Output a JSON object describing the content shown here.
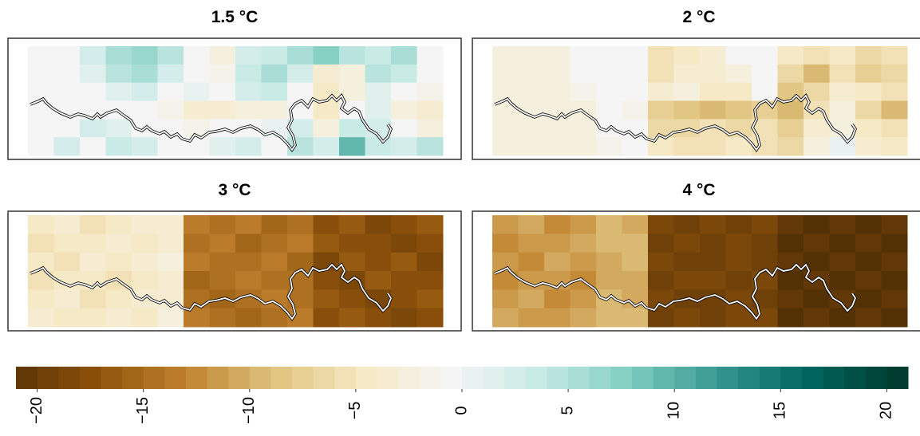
{
  "chart_data": {
    "type": "heatmap",
    "panels": [
      {
        "title": "1.5 °C",
        "values": [
          [
            0,
            0,
            3,
            6,
            7,
            5,
            0,
            -2,
            3,
            4,
            6,
            8,
            5,
            4,
            6,
            0
          ],
          [
            0,
            0,
            2,
            5,
            6,
            3,
            0,
            -1,
            4,
            6,
            3,
            -3,
            -2,
            5,
            4,
            0
          ],
          [
            0,
            0,
            0,
            2,
            3,
            0,
            1,
            0,
            3,
            4,
            0,
            -4,
            -2,
            2,
            0,
            -1
          ],
          [
            0,
            0,
            0,
            0,
            0,
            -1,
            -3,
            -3,
            -2,
            -2,
            0,
            -4,
            0,
            2,
            -2,
            -3
          ],
          [
            0,
            0,
            3,
            2,
            0,
            0,
            -1,
            0,
            0,
            1,
            3,
            -2,
            4,
            3,
            0,
            -2
          ],
          [
            0,
            3,
            0,
            4,
            3,
            0,
            0,
            2,
            3,
            0,
            5,
            3,
            10,
            4,
            3,
            5
          ]
        ]
      },
      {
        "title": "2 °C",
        "values": [
          [
            -2,
            -2,
            -2,
            0,
            0,
            0,
            -5,
            -4,
            -3,
            0,
            0,
            -4,
            -5,
            -4,
            -6,
            -5
          ],
          [
            -2,
            -2,
            -2,
            0,
            0,
            0,
            -5,
            -3,
            -3,
            -2,
            0,
            -6,
            -9,
            -5,
            -7,
            -6
          ],
          [
            -2,
            -2,
            -2,
            -1,
            0,
            0,
            -3,
            -2,
            -4,
            -4,
            0,
            -8,
            -6,
            -3,
            -4,
            -5
          ],
          [
            -2,
            -2,
            -2,
            -2,
            0,
            -1,
            -7,
            -8,
            -9,
            -8,
            -7,
            -9,
            -5,
            -2,
            -6,
            -9
          ],
          [
            -2,
            -2,
            -2,
            -2,
            0,
            0,
            -6,
            -6,
            -5,
            -6,
            -5,
            -7,
            -3,
            -2,
            -4,
            -5
          ],
          [
            -2,
            -2,
            -2,
            -2,
            -1,
            0,
            -4,
            -5,
            -5,
            -4,
            -5,
            -6,
            -2,
            1,
            -3,
            -4
          ]
        ]
      },
      {
        "title": "3 °C",
        "values": [
          [
            -4,
            -3,
            -5,
            -4,
            -3,
            -3,
            -13,
            -14,
            -13,
            -15,
            -14,
            -17,
            -16,
            -18,
            -17,
            -16
          ],
          [
            -5,
            -4,
            -4,
            -3,
            -4,
            -3,
            -14,
            -13,
            -15,
            -14,
            -13,
            -16,
            -17,
            -17,
            -18,
            -17
          ],
          [
            -4,
            -5,
            -3,
            -4,
            -3,
            -2,
            -13,
            -14,
            -14,
            -13,
            -15,
            -18,
            -16,
            -17,
            -16,
            -18
          ],
          [
            -5,
            -4,
            -4,
            -5,
            -4,
            -3,
            -15,
            -14,
            -13,
            -14,
            -14,
            -17,
            -18,
            -16,
            -17,
            -17
          ],
          [
            -4,
            -3,
            -5,
            -4,
            -3,
            -3,
            -14,
            -15,
            -14,
            -13,
            -14,
            -16,
            -17,
            -18,
            -17,
            -16
          ],
          [
            -3,
            -4,
            -4,
            -3,
            -4,
            -2,
            -13,
            -14,
            -15,
            -14,
            -13,
            -17,
            -16,
            -17,
            -18,
            -17
          ]
        ]
      },
      {
        "title": "4 °C",
        "values": [
          [
            -11,
            -10,
            -12,
            -11,
            -9,
            -10,
            -18,
            -19,
            -18,
            -19,
            -18,
            -20,
            -21,
            -20,
            -21,
            -20
          ],
          [
            -12,
            -11,
            -11,
            -10,
            -9,
            -9,
            -19,
            -18,
            -19,
            -18,
            -19,
            -21,
            -20,
            -21,
            -20,
            -21
          ],
          [
            -11,
            -12,
            -10,
            -11,
            -10,
            -9,
            -18,
            -19,
            -19,
            -18,
            -19,
            -20,
            -21,
            -20,
            -21,
            -20
          ],
          [
            -12,
            -11,
            -11,
            -12,
            -10,
            -10,
            -19,
            -18,
            -18,
            -19,
            -18,
            -21,
            -20,
            -21,
            -20,
            -21
          ],
          [
            -11,
            -10,
            -12,
            -11,
            -9,
            -10,
            -18,
            -19,
            -19,
            -18,
            -19,
            -20,
            -21,
            -20,
            -21,
            -20
          ],
          [
            -10,
            -11,
            -11,
            -10,
            -9,
            -9,
            -19,
            -18,
            -19,
            -18,
            -18,
            -21,
            -20,
            -21,
            -20,
            -21
          ]
        ]
      }
    ],
    "colorbar": {
      "xlim": [
        -21,
        21
      ],
      "xticks": [
        {
          "value": -20,
          "label": "−20"
        },
        {
          "value": -15,
          "label": "−15"
        },
        {
          "value": -10,
          "label": "−10"
        },
        {
          "value": -5,
          "label": "−5"
        },
        0,
        5,
        10,
        15,
        20
      ],
      "colors": [
        "#543005",
        "#8c510a",
        "#bf812d",
        "#dfc27d",
        "#f6e8c3",
        "#f5f5f5",
        "#c7eae5",
        "#80cdc1",
        "#35978f",
        "#01665e",
        "#003c30"
      ]
    }
  }
}
